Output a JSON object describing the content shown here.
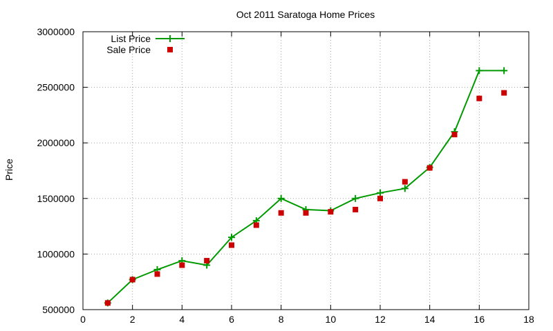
{
  "chart_data": {
    "type": "line",
    "title": "Oct 2011 Saratoga Home Prices",
    "xlabel": "",
    "ylabel": "Price",
    "xlim": [
      0,
      18
    ],
    "ylim": [
      500000,
      3000000
    ],
    "x_ticks": [
      0,
      2,
      4,
      6,
      8,
      10,
      12,
      14,
      16,
      18
    ],
    "y_ticks": [
      500000,
      1000000,
      1500000,
      2000000,
      2500000,
      3000000
    ],
    "grid": true,
    "legend_position": "top-left",
    "series": [
      {
        "name": "List Price",
        "style": "line-with-plus-markers",
        "color": "#009900",
        "points": [
          [
            1,
            560000
          ],
          [
            2,
            770000
          ],
          [
            3,
            860000
          ],
          [
            4,
            940000
          ],
          [
            5,
            900000
          ],
          [
            6,
            1150000
          ],
          [
            7,
            1300000
          ],
          [
            8,
            1500000
          ],
          [
            9,
            1400000
          ],
          [
            10,
            1390000
          ],
          [
            11,
            1500000
          ],
          [
            12,
            1550000
          ],
          [
            13,
            1590000
          ],
          [
            14,
            1780000
          ],
          [
            15,
            2100000
          ],
          [
            16,
            2650000
          ],
          [
            17,
            2650000
          ]
        ]
      },
      {
        "name": "Sale Price",
        "style": "square-markers",
        "color": "#cc0000",
        "points": [
          [
            1,
            560000
          ],
          [
            2,
            770000
          ],
          [
            3,
            820000
          ],
          [
            4,
            900000
          ],
          [
            5,
            940000
          ],
          [
            6,
            1080000
          ],
          [
            7,
            1260000
          ],
          [
            8,
            1370000
          ],
          [
            9,
            1370000
          ],
          [
            10,
            1380000
          ],
          [
            11,
            1400000
          ],
          [
            12,
            1500000
          ],
          [
            13,
            1650000
          ],
          [
            14,
            1775000
          ],
          [
            15,
            2075000
          ],
          [
            16,
            2400000
          ],
          [
            17,
            2450000
          ]
        ]
      }
    ]
  }
}
